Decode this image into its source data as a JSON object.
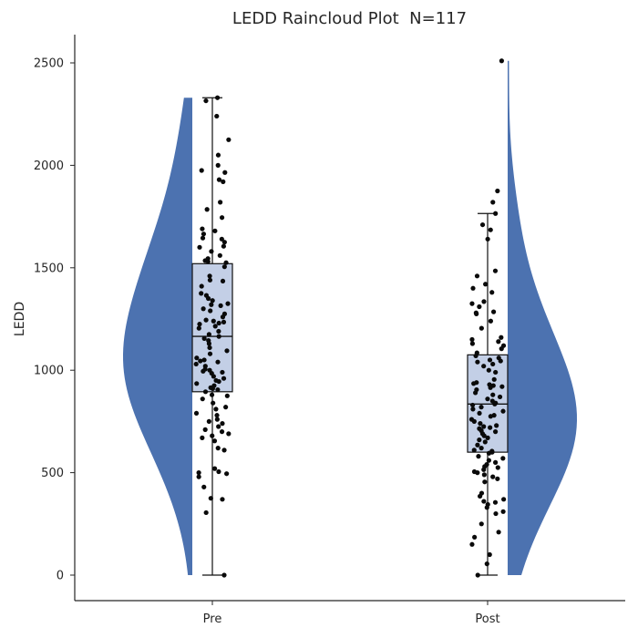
{
  "chart_data": {
    "type": "raincloud",
    "title": "LEDD Raincloud Plot  N=117",
    "xlabel": "",
    "ylabel": "LEDD",
    "ylim": [
      -130,
      2630
    ],
    "yticks": [
      0,
      500,
      1000,
      1500,
      2000,
      2500
    ],
    "grid": false,
    "colors": {
      "violin": "#4c72b0",
      "box_fill": "#c3cfe6",
      "box_edge": "#111111",
      "points": "#0a0a0a"
    },
    "categories": [
      "Pre",
      "Post"
    ],
    "groups": [
      {
        "name": "Pre",
        "box": {
          "q1": 895,
          "median": 1165,
          "q3": 1520,
          "whisker_low": 0,
          "whisker_high": 2330
        },
        "violin_range": [
          0,
          2330
        ],
        "points": [
          2330,
          2315,
          2240,
          2125,
          2050,
          2000,
          1975,
          1965,
          1930,
          1920,
          1820,
          1785,
          1745,
          1690,
          1680,
          1665,
          1645,
          1640,
          1625,
          1605,
          1600,
          1580,
          1560,
          1545,
          1535,
          1530,
          1525,
          1505,
          1460,
          1440,
          1435,
          1410,
          1375,
          1365,
          1350,
          1340,
          1325,
          1320,
          1315,
          1300,
          1290,
          1275,
          1260,
          1245,
          1240,
          1235,
          1230,
          1225,
          1215,
          1205,
          1190,
          1175,
          1165,
          1155,
          1145,
          1130,
          1110,
          1095,
          1080,
          1060,
          1050,
          1045,
          1040,
          1030,
          1020,
          1005,
          1000,
          995,
          990,
          985,
          970,
          960,
          950,
          945,
          935,
          925,
          915,
          910,
          905,
          895,
          880,
          875,
          860,
          840,
          820,
          810,
          790,
          780,
          760,
          750,
          740,
          725,
          710,
          700,
          690,
          680,
          670,
          655,
          620,
          610,
          520,
          505,
          500,
          495,
          480,
          430,
          375,
          370,
          305,
          0
        ]
      },
      {
        "name": "Post",
        "box": {
          "q1": 600,
          "median": 835,
          "q3": 1075,
          "whisker_low": 0,
          "whisker_high": 1765
        },
        "violin_range": [
          0,
          2510
        ],
        "points": [
          2510,
          1875,
          1820,
          1765,
          1710,
          1685,
          1640,
          1485,
          1460,
          1420,
          1400,
          1380,
          1335,
          1325,
          1310,
          1285,
          1280,
          1275,
          1240,
          1205,
          1160,
          1150,
          1140,
          1130,
          1120,
          1105,
          1085,
          1070,
          1060,
          1050,
          1045,
          1040,
          1030,
          1020,
          1000,
          990,
          955,
          940,
          935,
          930,
          925,
          920,
          915,
          905,
          890,
          880,
          870,
          860,
          850,
          840,
          835,
          830,
          820,
          810,
          800,
          790,
          780,
          775,
          760,
          750,
          740,
          730,
          725,
          720,
          715,
          705,
          700,
          690,
          680,
          670,
          660,
          650,
          635,
          620,
          610,
          605,
          600,
          595,
          580,
          570,
          560,
          550,
          540,
          530,
          525,
          515,
          505,
          500,
          490,
          480,
          470,
          455,
          400,
          385,
          370,
          360,
          355,
          345,
          330,
          310,
          300,
          250,
          210,
          185,
          150,
          100,
          55,
          0
        ]
      }
    ]
  }
}
